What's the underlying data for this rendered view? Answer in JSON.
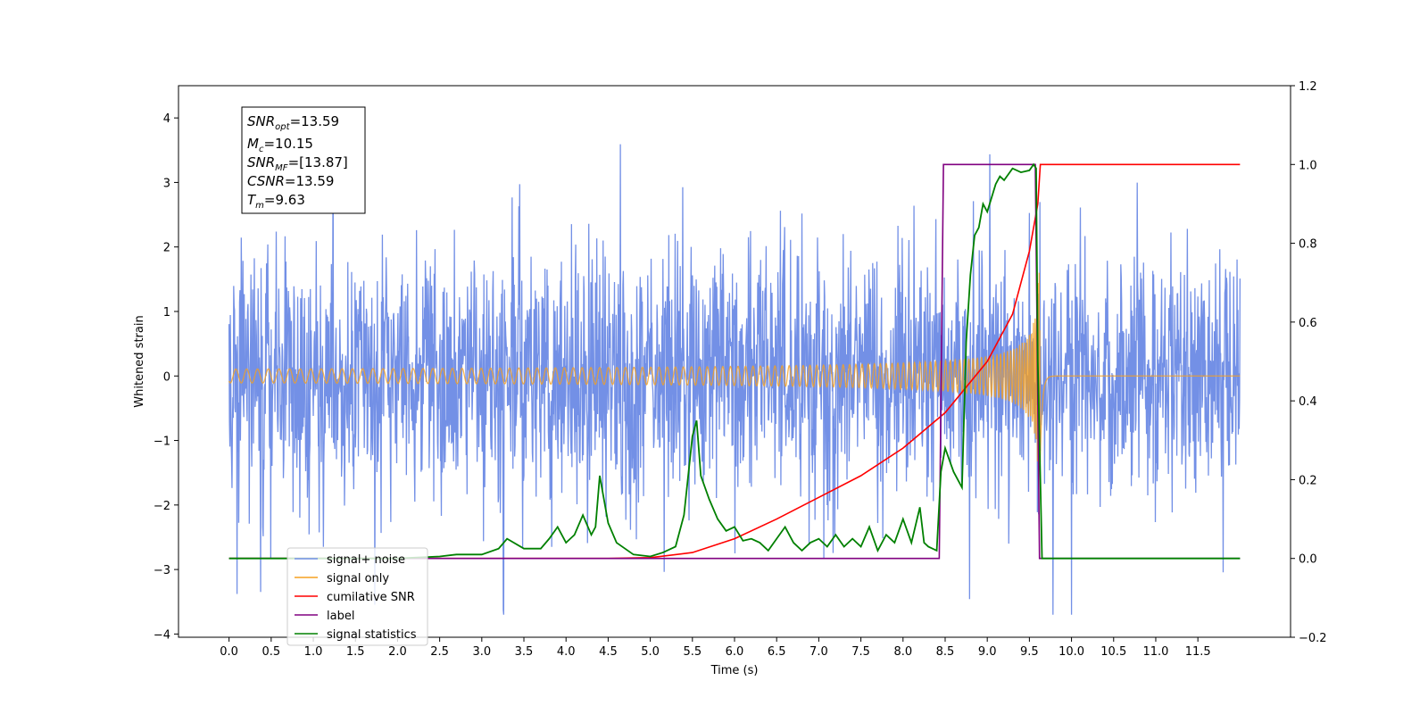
{
  "chart_data": {
    "type": "line",
    "xlabel": "Time (s)",
    "ylabel": "Whitened strain",
    "xlim": [
      -0.6,
      12.6
    ],
    "ylim_left": [
      -4.05,
      4.5
    ],
    "ylim_right": [
      -0.2,
      1.2
    ],
    "x_ticks": [
      "0.0",
      "0.5",
      "1.0",
      "1.5",
      "2.0",
      "2.5",
      "3.0",
      "3.5",
      "4.0",
      "4.5",
      "5.0",
      "5.5",
      "6.0",
      "6.5",
      "7.0",
      "7.5",
      "8.0",
      "8.5",
      "9.0",
      "9.5",
      "10.0",
      "10.5",
      "11.0",
      "11.5"
    ],
    "y_ticks_left": [
      "−4",
      "−3",
      "−2",
      "−1",
      "0",
      "1",
      "2",
      "3",
      "4"
    ],
    "y_ticks_right": [
      "−0.2",
      "0.0",
      "0.2",
      "0.4",
      "0.6",
      "0.8",
      "1.0",
      "1.2"
    ],
    "legend_position": "lower-left",
    "colors": {
      "signal_noise": "#7390e6",
      "signal_only": "#f5a020",
      "cumulative_snr": "#ff0000",
      "label": "#800080",
      "signal_statistics": "#008000"
    },
    "annotations": {
      "snr_opt": "=13.59",
      "mc": "=10.15",
      "snr_mf": "=[13.87]",
      "csnr": "=13.59",
      "tm": "=9.63"
    },
    "series": [
      {
        "name": "signal+ noise",
        "description": "noise",
        "time_range": [
          0,
          12
        ],
        "amplitude_envelope": [
          -3.7,
          4.1
        ]
      },
      {
        "name": "signal only",
        "description": "chirp",
        "time_range": [
          0,
          12
        ],
        "merger_time": 9.63,
        "peak_amplitude": 1.6
      },
      {
        "name": "cumilative SNR",
        "axis": "right",
        "x": [
          0,
          4.5,
          5.0,
          5.5,
          6.0,
          6.5,
          7.0,
          7.5,
          8.0,
          8.5,
          9.0,
          9.3,
          9.5,
          9.6,
          9.63,
          12.0
        ],
        "y": [
          0,
          0,
          0.002,
          0.015,
          0.05,
          0.1,
          0.155,
          0.21,
          0.28,
          0.37,
          0.5,
          0.62,
          0.78,
          0.9,
          1.0,
          1.0
        ]
      },
      {
        "name": "label",
        "axis": "right",
        "x": [
          0,
          8.43,
          8.48,
          9.57,
          9.62,
          12.0
        ],
        "y": [
          0,
          0,
          1,
          1,
          0,
          0
        ]
      },
      {
        "name": "signal statistics",
        "axis": "right",
        "x": [
          0,
          2.0,
          2.5,
          2.7,
          3.0,
          3.2,
          3.3,
          3.5,
          3.7,
          3.8,
          3.9,
          4.0,
          4.1,
          4.2,
          4.3,
          4.35,
          4.4,
          4.5,
          4.6,
          4.8,
          5.0,
          5.15,
          5.3,
          5.4,
          5.5,
          5.55,
          5.6,
          5.7,
          5.8,
          5.9,
          6.0,
          6.1,
          6.2,
          6.3,
          6.4,
          6.5,
          6.6,
          6.7,
          6.8,
          6.9,
          7.0,
          7.1,
          7.2,
          7.3,
          7.4,
          7.5,
          7.6,
          7.7,
          7.8,
          7.9,
          8.0,
          8.1,
          8.2,
          8.25,
          8.3,
          8.4,
          8.45,
          8.5,
          8.6,
          8.7,
          8.75,
          8.8,
          8.85,
          8.9,
          8.95,
          9.0,
          9.1,
          9.15,
          9.2,
          9.3,
          9.4,
          9.5,
          9.55,
          9.58,
          9.6,
          9.65,
          12.0
        ],
        "y": [
          0,
          0,
          0.005,
          0.01,
          0.01,
          0.025,
          0.05,
          0.025,
          0.025,
          0.05,
          0.08,
          0.04,
          0.06,
          0.11,
          0.06,
          0.08,
          0.21,
          0.09,
          0.04,
          0.01,
          0.005,
          0.015,
          0.03,
          0.11,
          0.31,
          0.35,
          0.21,
          0.15,
          0.1,
          0.07,
          0.08,
          0.045,
          0.05,
          0.04,
          0.02,
          0.05,
          0.08,
          0.04,
          0.02,
          0.04,
          0.05,
          0.03,
          0.06,
          0.03,
          0.05,
          0.03,
          0.08,
          0.02,
          0.06,
          0.04,
          0.1,
          0.04,
          0.13,
          0.04,
          0.03,
          0.02,
          0.22,
          0.28,
          0.22,
          0.18,
          0.55,
          0.72,
          0.82,
          0.84,
          0.9,
          0.88,
          0.95,
          0.97,
          0.96,
          0.99,
          0.98,
          0.985,
          1.0,
          0.99,
          0.5,
          0,
          0
        ]
      }
    ],
    "legend": [
      "signal+ noise",
      "signal only",
      "cumilative SNR",
      "label",
      "signal statistics"
    ]
  }
}
